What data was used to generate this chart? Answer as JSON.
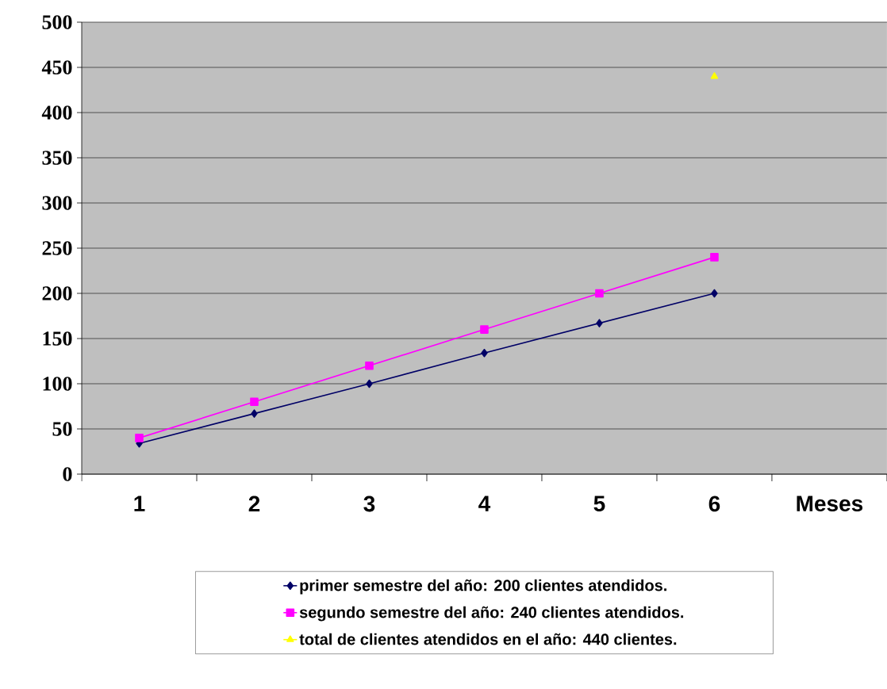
{
  "chart_data": {
    "type": "line",
    "categories": [
      "1",
      "2",
      "3",
      "4",
      "5",
      "6",
      "Meses"
    ],
    "series": [
      {
        "name": "primer semestre del año: 200 clientes atendidos.",
        "color": "#000066",
        "marker": "diamond",
        "values": [
          34,
          67,
          100,
          134,
          167,
          200,
          null
        ]
      },
      {
        "name": "segundo semestre del año: 240 clientes atendidos.",
        "color": "#ff00ff",
        "marker": "square",
        "values": [
          40,
          80,
          120,
          160,
          200,
          240,
          null
        ]
      },
      {
        "name": "total de clientes atendidos en el año: 440 clientes.",
        "color": "#ffff00",
        "marker": "triangle",
        "values": [
          null,
          null,
          null,
          null,
          null,
          440,
          null
        ]
      }
    ],
    "ylim": [
      0,
      500
    ],
    "yticks": [
      0,
      50,
      100,
      150,
      200,
      250,
      300,
      350,
      400,
      450,
      500
    ],
    "grid": "y",
    "legend": "bottom"
  }
}
